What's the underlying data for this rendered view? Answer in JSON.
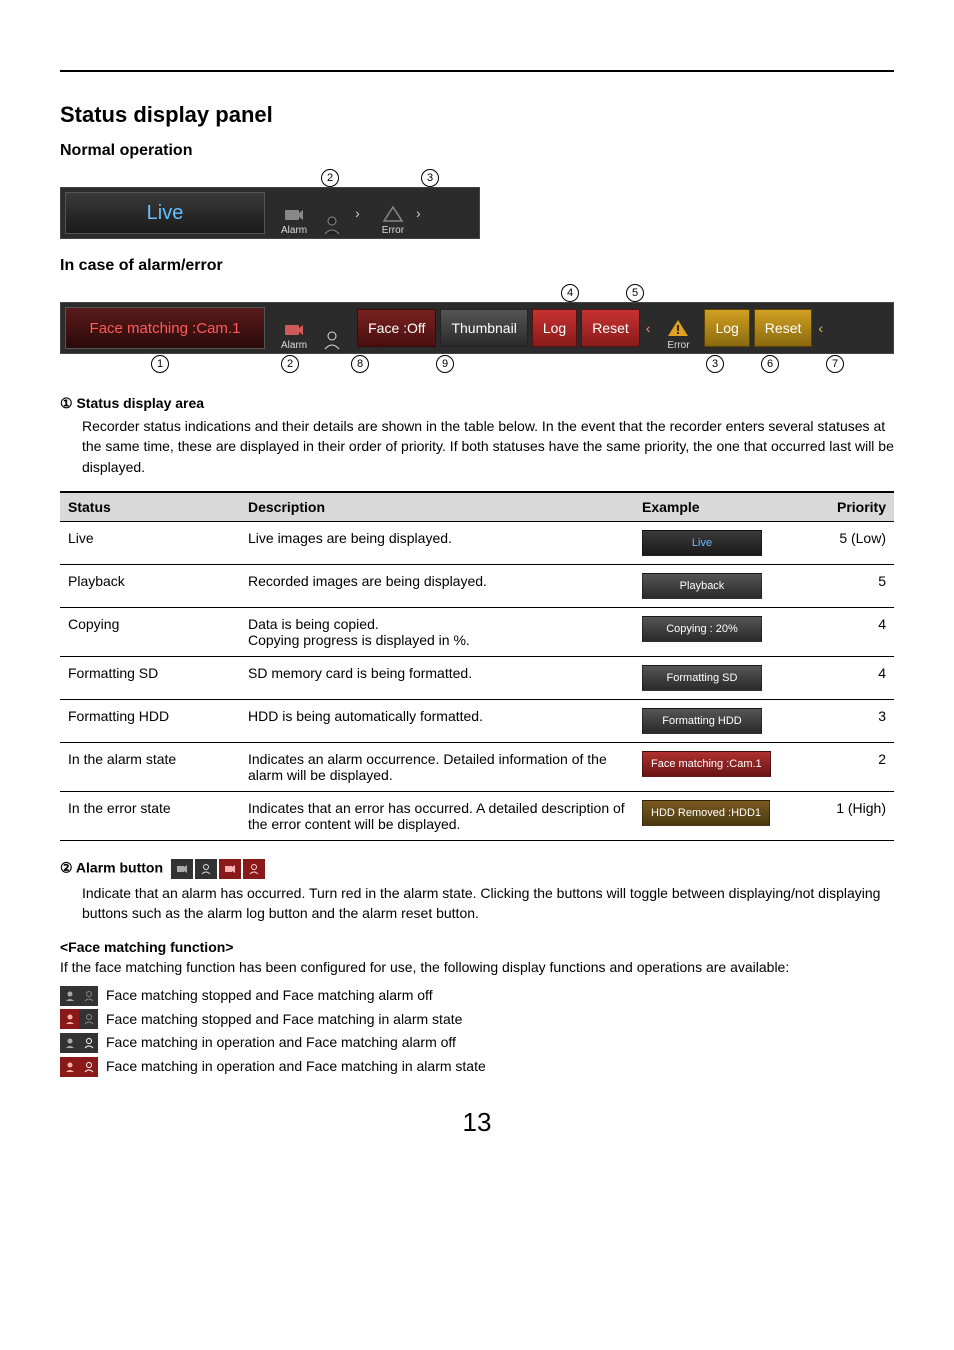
{
  "page": {
    "number": "13"
  },
  "headings": {
    "section_title": "Status display panel",
    "normal_operation": "Normal operation",
    "in_case": "In case of alarm/error"
  },
  "normal_panel": {
    "status_text": "Live",
    "alarm_label": "Alarm",
    "error_label": "Error",
    "callouts": {
      "c2": "2",
      "c3": "3"
    }
  },
  "alarm_panel": {
    "status_text": "Face matching :Cam.1",
    "alarm_label": "Alarm",
    "face_off": "Face :Off",
    "thumbnail": "Thumbnail",
    "log": "Log",
    "reset": "Reset",
    "error_label": "Error",
    "callouts_top": {
      "c4": "4",
      "c5": "5"
    },
    "callouts_bottom": {
      "c1": "1",
      "c2": "2",
      "c8": "8",
      "c9": "9",
      "c3": "3",
      "c6": "6",
      "c7": "7"
    }
  },
  "item1": {
    "head": "①  Status display area",
    "body": "Recorder status indications and their details are shown in the table below. In the event that the recorder enters several statuses at the same time, these are displayed in their order of priority. If both statuses have the same priority, the one that occurred last will be displayed."
  },
  "status_table": {
    "headers": {
      "status": "Status",
      "description": "Description",
      "example": "Example",
      "priority": "Priority"
    },
    "rows": [
      {
        "status": "Live",
        "description": "Live images are being displayed.",
        "example": "Live",
        "example_style": "blue",
        "priority": "5 (Low)"
      },
      {
        "status": "Playback",
        "description": "Recorded images are being displayed.",
        "example": "Playback",
        "example_style": "grey",
        "priority": "5"
      },
      {
        "status": "Copying",
        "description": "Data is being copied.\nCopying progress is displayed in %.",
        "example": "Copying : 20%",
        "example_style": "grey",
        "priority": "4"
      },
      {
        "status": "Formatting SD",
        "description": "SD memory card is being formatted.",
        "example": "Formatting SD",
        "example_style": "grey",
        "priority": "4"
      },
      {
        "status": "Formatting HDD",
        "description": "HDD is being automatically formatted.",
        "example": "Formatting HDD",
        "example_style": "grey",
        "priority": "3"
      },
      {
        "status": "In the alarm state",
        "description": "Indicates an alarm occurrence. Detailed information of the alarm will be displayed.",
        "example": "Face matching :Cam.1",
        "example_style": "red",
        "priority": "2"
      },
      {
        "status": "In the error state",
        "description": "Indicates that an error has occurred. A detailed description of the error content will be displayed.",
        "example": "HDD Removed :HDD1",
        "example_style": "brown",
        "priority": "1 (High)"
      }
    ]
  },
  "item2": {
    "head": "②  Alarm button",
    "body": "Indicate that an alarm has occurred. Turn red in the alarm state. Clicking the buttons will toggle between displaying/not displaying buttons such as the alarm log button and the alarm reset button."
  },
  "face_matching": {
    "head": "<Face matching function>",
    "intro": "If the face matching function has been configured for use, the following display functions and operations are available:",
    "lines": [
      "Face matching stopped and Face matching alarm off",
      "Face matching stopped and Face matching in alarm state",
      "Face matching in operation and Face matching alarm off",
      "Face matching in operation and Face matching in alarm state"
    ]
  },
  "colors": {
    "accent_blue": "#66bfff",
    "accent_red": "#c83232",
    "accent_yellow": "#e0a020"
  }
}
